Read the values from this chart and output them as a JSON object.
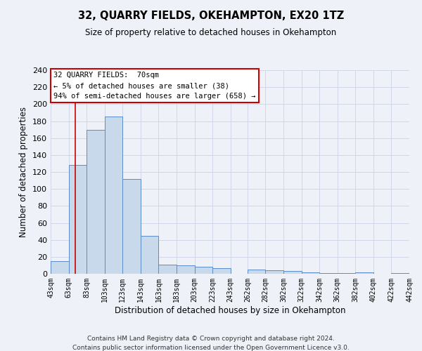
{
  "title": "32, QUARRY FIELDS, OKEHAMPTON, EX20 1TZ",
  "subtitle": "Size of property relative to detached houses in Okehampton",
  "xlabel": "Distribution of detached houses by size in Okehampton",
  "ylabel": "Number of detached properties",
  "bin_edges": [
    43,
    63,
    83,
    103,
    123,
    143,
    163,
    183,
    203,
    223,
    243,
    262,
    282,
    302,
    322,
    342,
    362,
    382,
    402,
    422,
    442
  ],
  "bar_heights": [
    15,
    128,
    170,
    185,
    112,
    45,
    11,
    10,
    8,
    7,
    0,
    5,
    4,
    3,
    2,
    1,
    1,
    2,
    0,
    1
  ],
  "bar_color": "#c8d9ec",
  "bar_edge_color": "#5b8cc8",
  "ylim": [
    0,
    240
  ],
  "yticks": [
    0,
    20,
    40,
    60,
    80,
    100,
    120,
    140,
    160,
    180,
    200,
    220,
    240
  ],
  "red_line_x": 70,
  "red_line_color": "#cc0000",
  "annotation_line1": "32 QUARRY FIELDS:  70sqm",
  "annotation_line2": "← 5% of detached houses are smaller (38)",
  "annotation_line3": "94% of semi-detached houses are larger (658) →",
  "annotation_box_facecolor": "#ffffff",
  "annotation_box_edgecolor": "#cc0000",
  "grid_color": "#d0d8e8",
  "background_color": "#eef2f8",
  "footer_line1": "Contains HM Land Registry data © Crown copyright and database right 2024.",
  "footer_line2": "Contains public sector information licensed under the Open Government Licence v3.0."
}
